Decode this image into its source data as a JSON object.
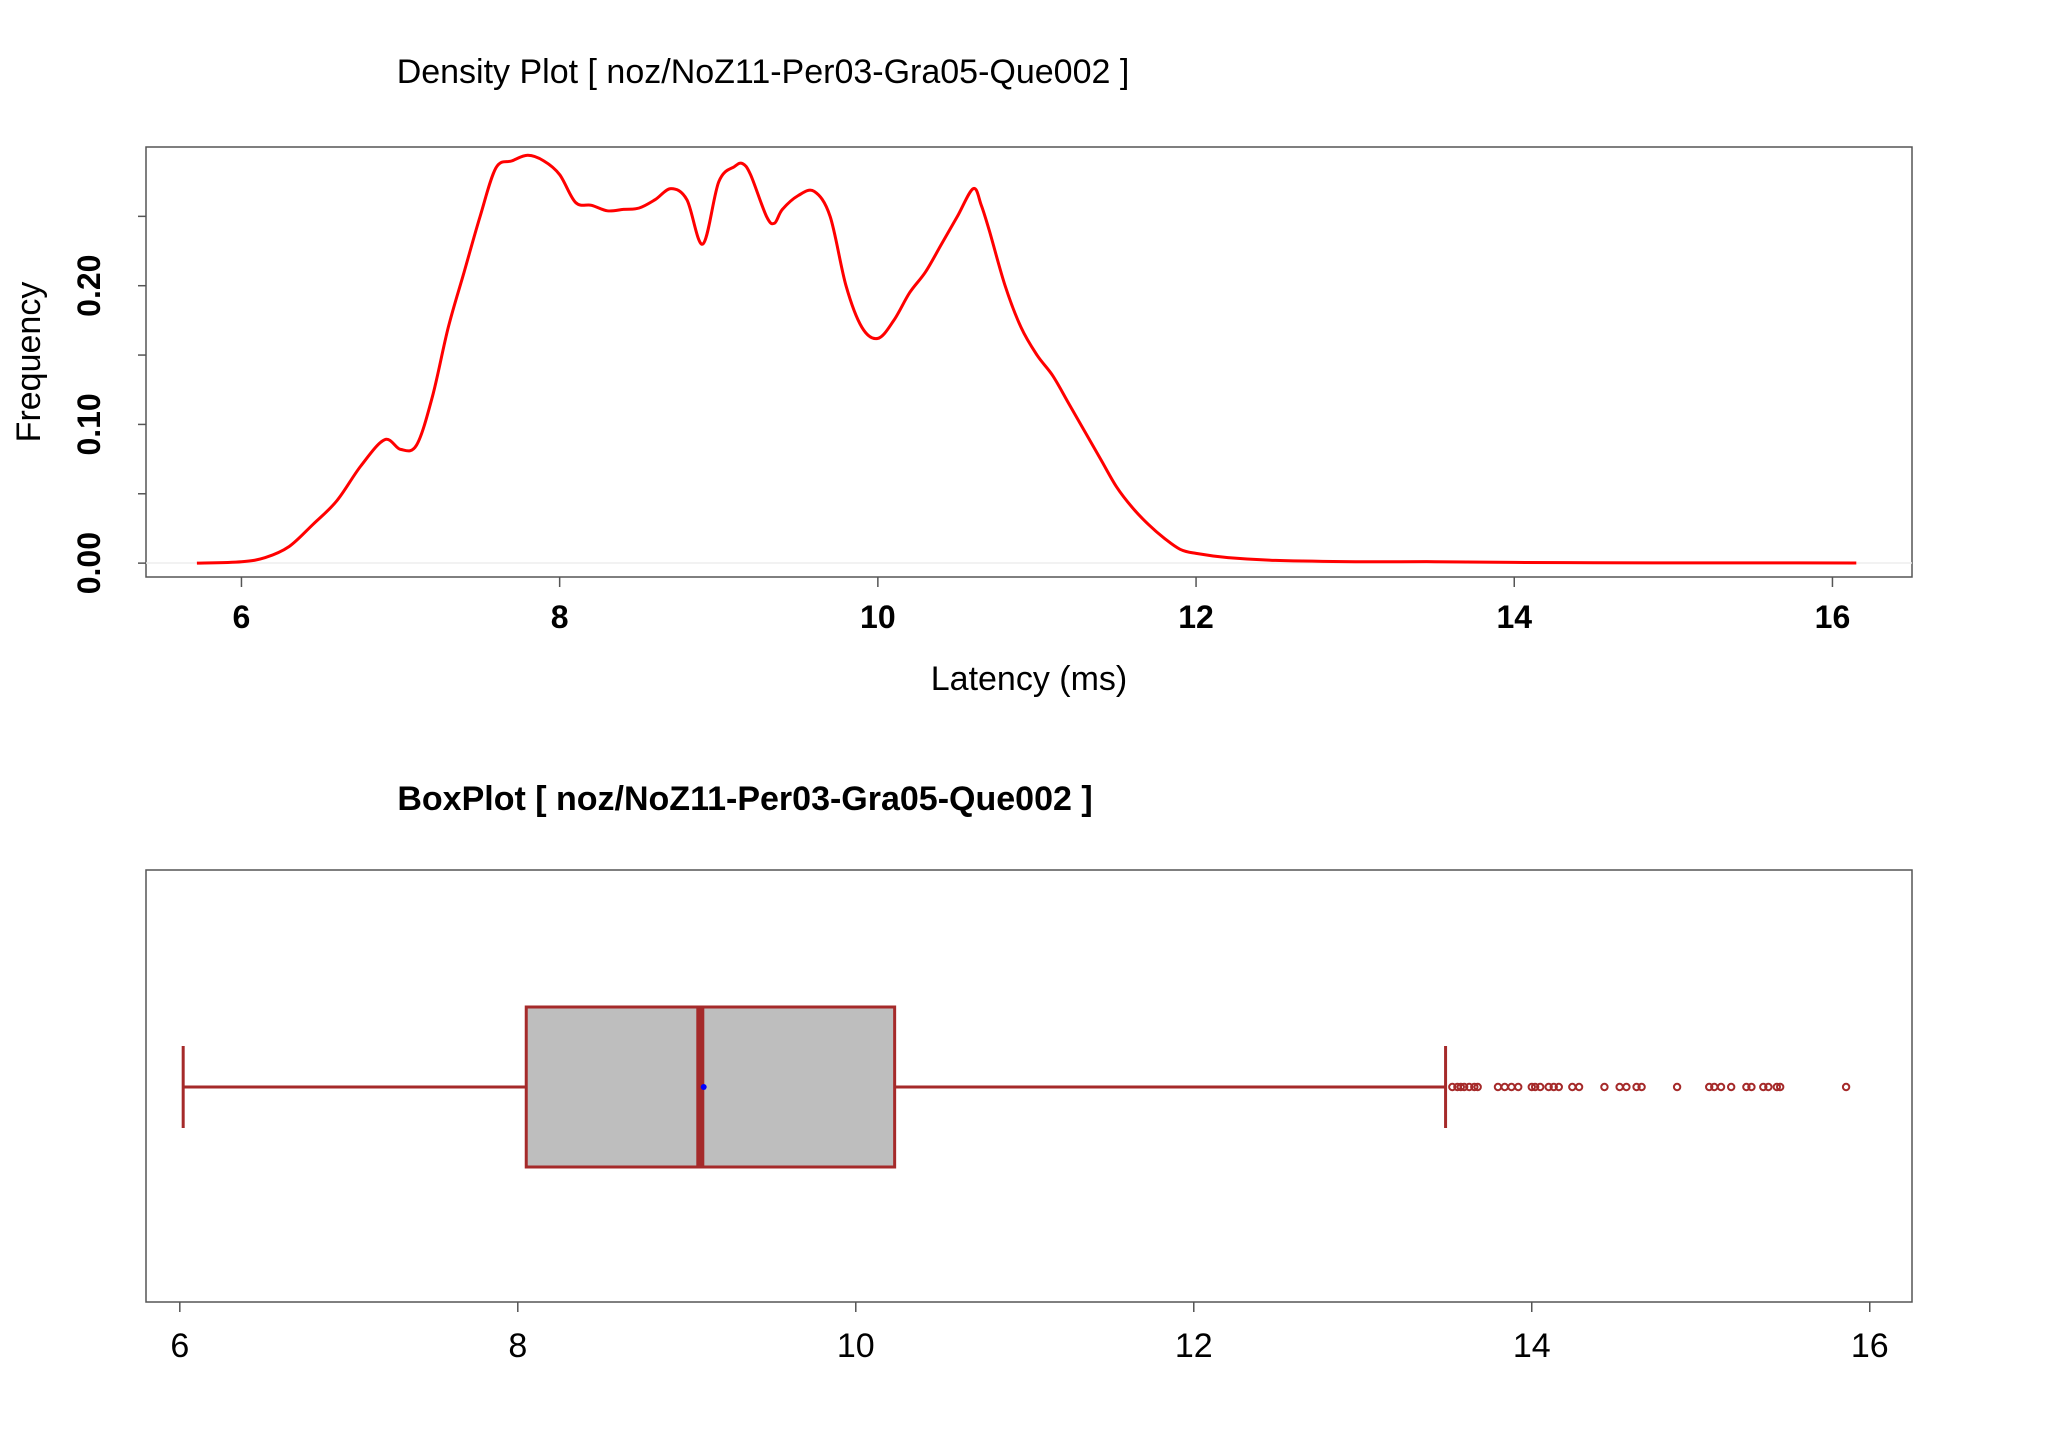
{
  "chart_data": [
    {
      "type": "line",
      "title": "Density Plot [ noz/NoZ11-Per03-Gra05-Que002 ]",
      "xlabel": "Latency (ms)",
      "ylabel": "Frequency",
      "xlim": [
        5.4,
        16.5
      ],
      "ylim": [
        -0.01,
        0.3
      ],
      "x_ticks": [
        "6",
        "8",
        "10",
        "12",
        "14",
        "16"
      ],
      "y_ticks": [
        "0.00",
        "0.10",
        "0.20"
      ],
      "line_color": "#ff0000",
      "grid": false,
      "series": [
        {
          "x": [
            5.72,
            6.0,
            6.15,
            6.3,
            6.45,
            6.6,
            6.75,
            6.9,
            7.0,
            7.1,
            7.2,
            7.3,
            7.4,
            7.5,
            7.6,
            7.7,
            7.8,
            7.9,
            8.0,
            8.1,
            8.2,
            8.3,
            8.4,
            8.5,
            8.6,
            8.7,
            8.8,
            8.9,
            9.0,
            9.1,
            9.15,
            9.2,
            9.3,
            9.35,
            9.4,
            9.5,
            9.6,
            9.7,
            9.8,
            9.9,
            10.0,
            10.1,
            10.2,
            10.3,
            10.4,
            10.5,
            10.6,
            10.65,
            10.7,
            10.8,
            10.9,
            11.0,
            11.1,
            11.2,
            11.3,
            11.4,
            11.5,
            11.6,
            11.7,
            11.8,
            11.9,
            12.0,
            12.2,
            12.5,
            13.0,
            13.5,
            14.0,
            14.5,
            15.0,
            15.5,
            16.15
          ],
          "y": [
            0.0,
            0.001,
            0.004,
            0.012,
            0.028,
            0.045,
            0.07,
            0.089,
            0.082,
            0.085,
            0.12,
            0.17,
            0.21,
            0.25,
            0.285,
            0.29,
            0.294,
            0.29,
            0.28,
            0.26,
            0.258,
            0.254,
            0.255,
            0.256,
            0.262,
            0.27,
            0.262,
            0.23,
            0.275,
            0.286,
            0.288,
            0.28,
            0.25,
            0.245,
            0.255,
            0.265,
            0.268,
            0.25,
            0.2,
            0.17,
            0.162,
            0.175,
            0.195,
            0.21,
            0.23,
            0.25,
            0.27,
            0.258,
            0.24,
            0.2,
            0.17,
            0.15,
            0.135,
            0.115,
            0.095,
            0.075,
            0.055,
            0.04,
            0.028,
            0.018,
            0.01,
            0.007,
            0.004,
            0.002,
            0.001,
            0.001,
            0.0005,
            0.0003,
            0.0002,
            0.0002,
            0.0001
          ]
        }
      ]
    },
    {
      "type": "box",
      "title": "BoxPlot [ noz/NoZ11-Per03-Gra05-Que002 ]",
      "xlim": [
        5.8,
        16.25
      ],
      "x_ticks": [
        "6",
        "8",
        "10",
        "12",
        "14",
        "16"
      ],
      "color": "#a52a2a",
      "box_fill": "#bebebe",
      "mean_color": "#0000ff",
      "stats": {
        "whisker_low": 6.02,
        "q1": 8.05,
        "median": 9.08,
        "mean": 9.1,
        "q3": 10.23,
        "whisker_high": 13.49
      },
      "outliers": [
        13.53,
        13.56,
        13.58,
        13.6,
        13.63,
        13.66,
        13.68,
        13.8,
        13.84,
        13.88,
        13.92,
        14.0,
        14.02,
        14.05,
        14.1,
        14.13,
        14.16,
        14.24,
        14.28,
        14.43,
        14.52,
        14.56,
        14.62,
        14.65,
        14.86,
        15.05,
        15.08,
        15.12,
        15.18,
        15.27,
        15.3,
        15.37,
        15.4,
        15.45,
        15.47,
        15.86
      ]
    }
  ]
}
